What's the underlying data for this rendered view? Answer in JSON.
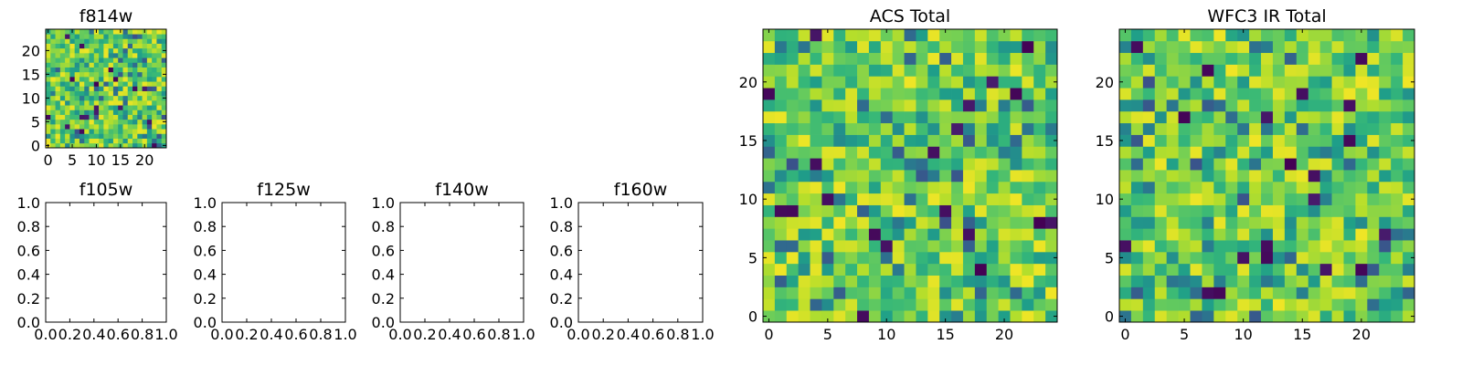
{
  "colormap": "viridis",
  "chart_data": [
    {
      "id": "f814w",
      "type": "heatmap",
      "title": "f814w",
      "grid_size": [
        25,
        25
      ],
      "xlim": [
        -0.5,
        24.5
      ],
      "ylim": [
        -0.5,
        24.5
      ],
      "xticks": [
        0,
        5,
        10,
        15,
        20
      ],
      "yticks": [
        0,
        5,
        10,
        15,
        20
      ],
      "vmin": 0.0,
      "vmax": 1.0,
      "values": "random noise field, 25x25 cells, values 0-1 (mostly 0.6-0.95 with scattered low outliers)"
    },
    {
      "id": "f105w",
      "type": "empty",
      "title": "f105w",
      "xlim": [
        0.0,
        1.0
      ],
      "ylim": [
        0.0,
        1.0
      ],
      "xticks": [
        "0.0",
        "0.2",
        "0.4",
        "0.6",
        "0.8",
        "1.0"
      ],
      "yticks": [
        "0.0",
        "0.2",
        "0.4",
        "0.6",
        "0.8",
        "1.0"
      ]
    },
    {
      "id": "f125w",
      "type": "empty",
      "title": "f125w",
      "xlim": [
        0.0,
        1.0
      ],
      "ylim": [
        0.0,
        1.0
      ],
      "xticks": [
        "0.0",
        "0.2",
        "0.4",
        "0.6",
        "0.8",
        "1.0"
      ],
      "yticks": [
        "0.0",
        "0.2",
        "0.4",
        "0.6",
        "0.8",
        "1.0"
      ]
    },
    {
      "id": "f140w",
      "type": "empty",
      "title": "f140w",
      "xlim": [
        0.0,
        1.0
      ],
      "ylim": [
        0.0,
        1.0
      ],
      "xticks": [
        "0.0",
        "0.2",
        "0.4",
        "0.6",
        "0.8",
        "1.0"
      ],
      "yticks": [
        "0.0",
        "0.2",
        "0.4",
        "0.6",
        "0.8",
        "1.0"
      ]
    },
    {
      "id": "f160w",
      "type": "empty",
      "title": "f160w",
      "xlim": [
        0.0,
        1.0
      ],
      "ylim": [
        0.0,
        1.0
      ],
      "xticks": [
        "0.0",
        "0.2",
        "0.4",
        "0.6",
        "0.8",
        "1.0"
      ],
      "yticks": [
        "0.0",
        "0.2",
        "0.4",
        "0.6",
        "0.8",
        "1.0"
      ]
    },
    {
      "id": "acs-total",
      "type": "heatmap",
      "title": "ACS Total",
      "grid_size": [
        25,
        25
      ],
      "xlim": [
        -0.5,
        24.5
      ],
      "ylim": [
        -0.5,
        24.5
      ],
      "xticks": [
        0,
        5,
        10,
        15,
        20
      ],
      "yticks": [
        0,
        5,
        10,
        15,
        20
      ],
      "vmin": 0.0,
      "vmax": 1.0,
      "values": "random noise field, 25x25 cells, values 0-1 (mostly 0.6-0.95 with scattered low outliers)"
    },
    {
      "id": "wfc3-ir-total",
      "type": "heatmap",
      "title": "WFC3 IR Total",
      "grid_size": [
        25,
        25
      ],
      "xlim": [
        -0.5,
        24.5
      ],
      "ylim": [
        -0.5,
        24.5
      ],
      "xticks": [
        0,
        5,
        10,
        15,
        20
      ],
      "yticks": [
        0,
        5,
        10,
        15,
        20
      ],
      "vmin": 0.0,
      "vmax": 1.0,
      "values": "random noise field, 25x25 cells, values 0-1 (mostly 0.6-0.95 with scattered low outliers)"
    }
  ]
}
